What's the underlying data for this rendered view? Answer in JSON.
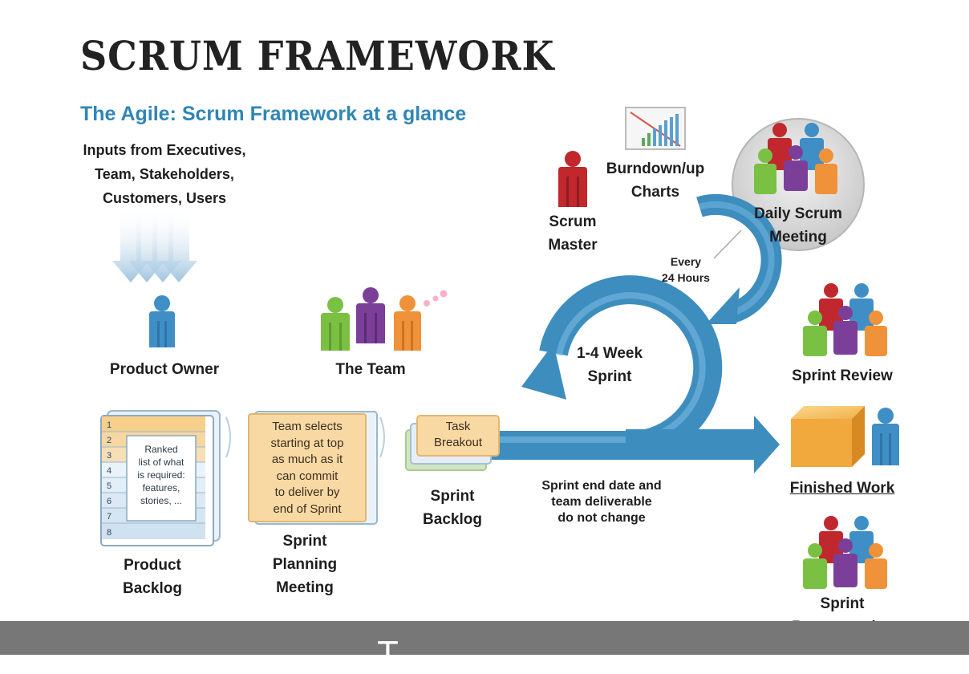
{
  "title": "SCRUM FRAMEWORK",
  "subtitle": "The Agile: Scrum Framework at a glance",
  "inputs": [
    "Inputs from Executives,",
    "Team, Stakeholders,",
    "Customers, Users"
  ],
  "roles": {
    "product_owner": "Product Owner",
    "the_team": "The Team",
    "scrum_master": [
      "Scrum",
      "Master"
    ],
    "burndown": [
      "Burndown/up",
      "Charts"
    ],
    "daily_scrum": [
      "Daily Scrum",
      "Meeting"
    ],
    "sprint_review": "Sprint Review",
    "finished_work": "Finished Work",
    "sprint_retro": [
      "Sprint",
      "Retrospective"
    ]
  },
  "product_backlog": {
    "rows": [
      "1",
      "2",
      "3",
      "4",
      "5",
      "6",
      "7",
      "8"
    ],
    "note": [
      "Ranked",
      "list of what",
      "is required:",
      "features,",
      "stories, ..."
    ],
    "label": [
      "Product",
      "Backlog"
    ]
  },
  "sprint_planning": {
    "note": [
      "Team selects",
      "starting at top",
      "as much as it",
      "can commit",
      "to deliver by",
      "end of Sprint"
    ],
    "label": [
      "Sprint",
      "Planning",
      "Meeting"
    ]
  },
  "sprint_backlog": {
    "card": [
      "Task",
      "Breakout"
    ],
    "label": [
      "Sprint",
      "Backlog"
    ]
  },
  "cycle": {
    "sprint": [
      "1-4 Week",
      "Sprint"
    ],
    "daily": [
      "Every",
      "24 Hours"
    ],
    "note": [
      "Sprint end date and",
      "team deliverable",
      "do not change"
    ]
  },
  "caption": "T",
  "colors": {
    "accent_blue": "#2f86b5",
    "arrow_blue": "#3d8dbf",
    "note_orange": "#f6d49a",
    "bar_gray": "#777777"
  }
}
